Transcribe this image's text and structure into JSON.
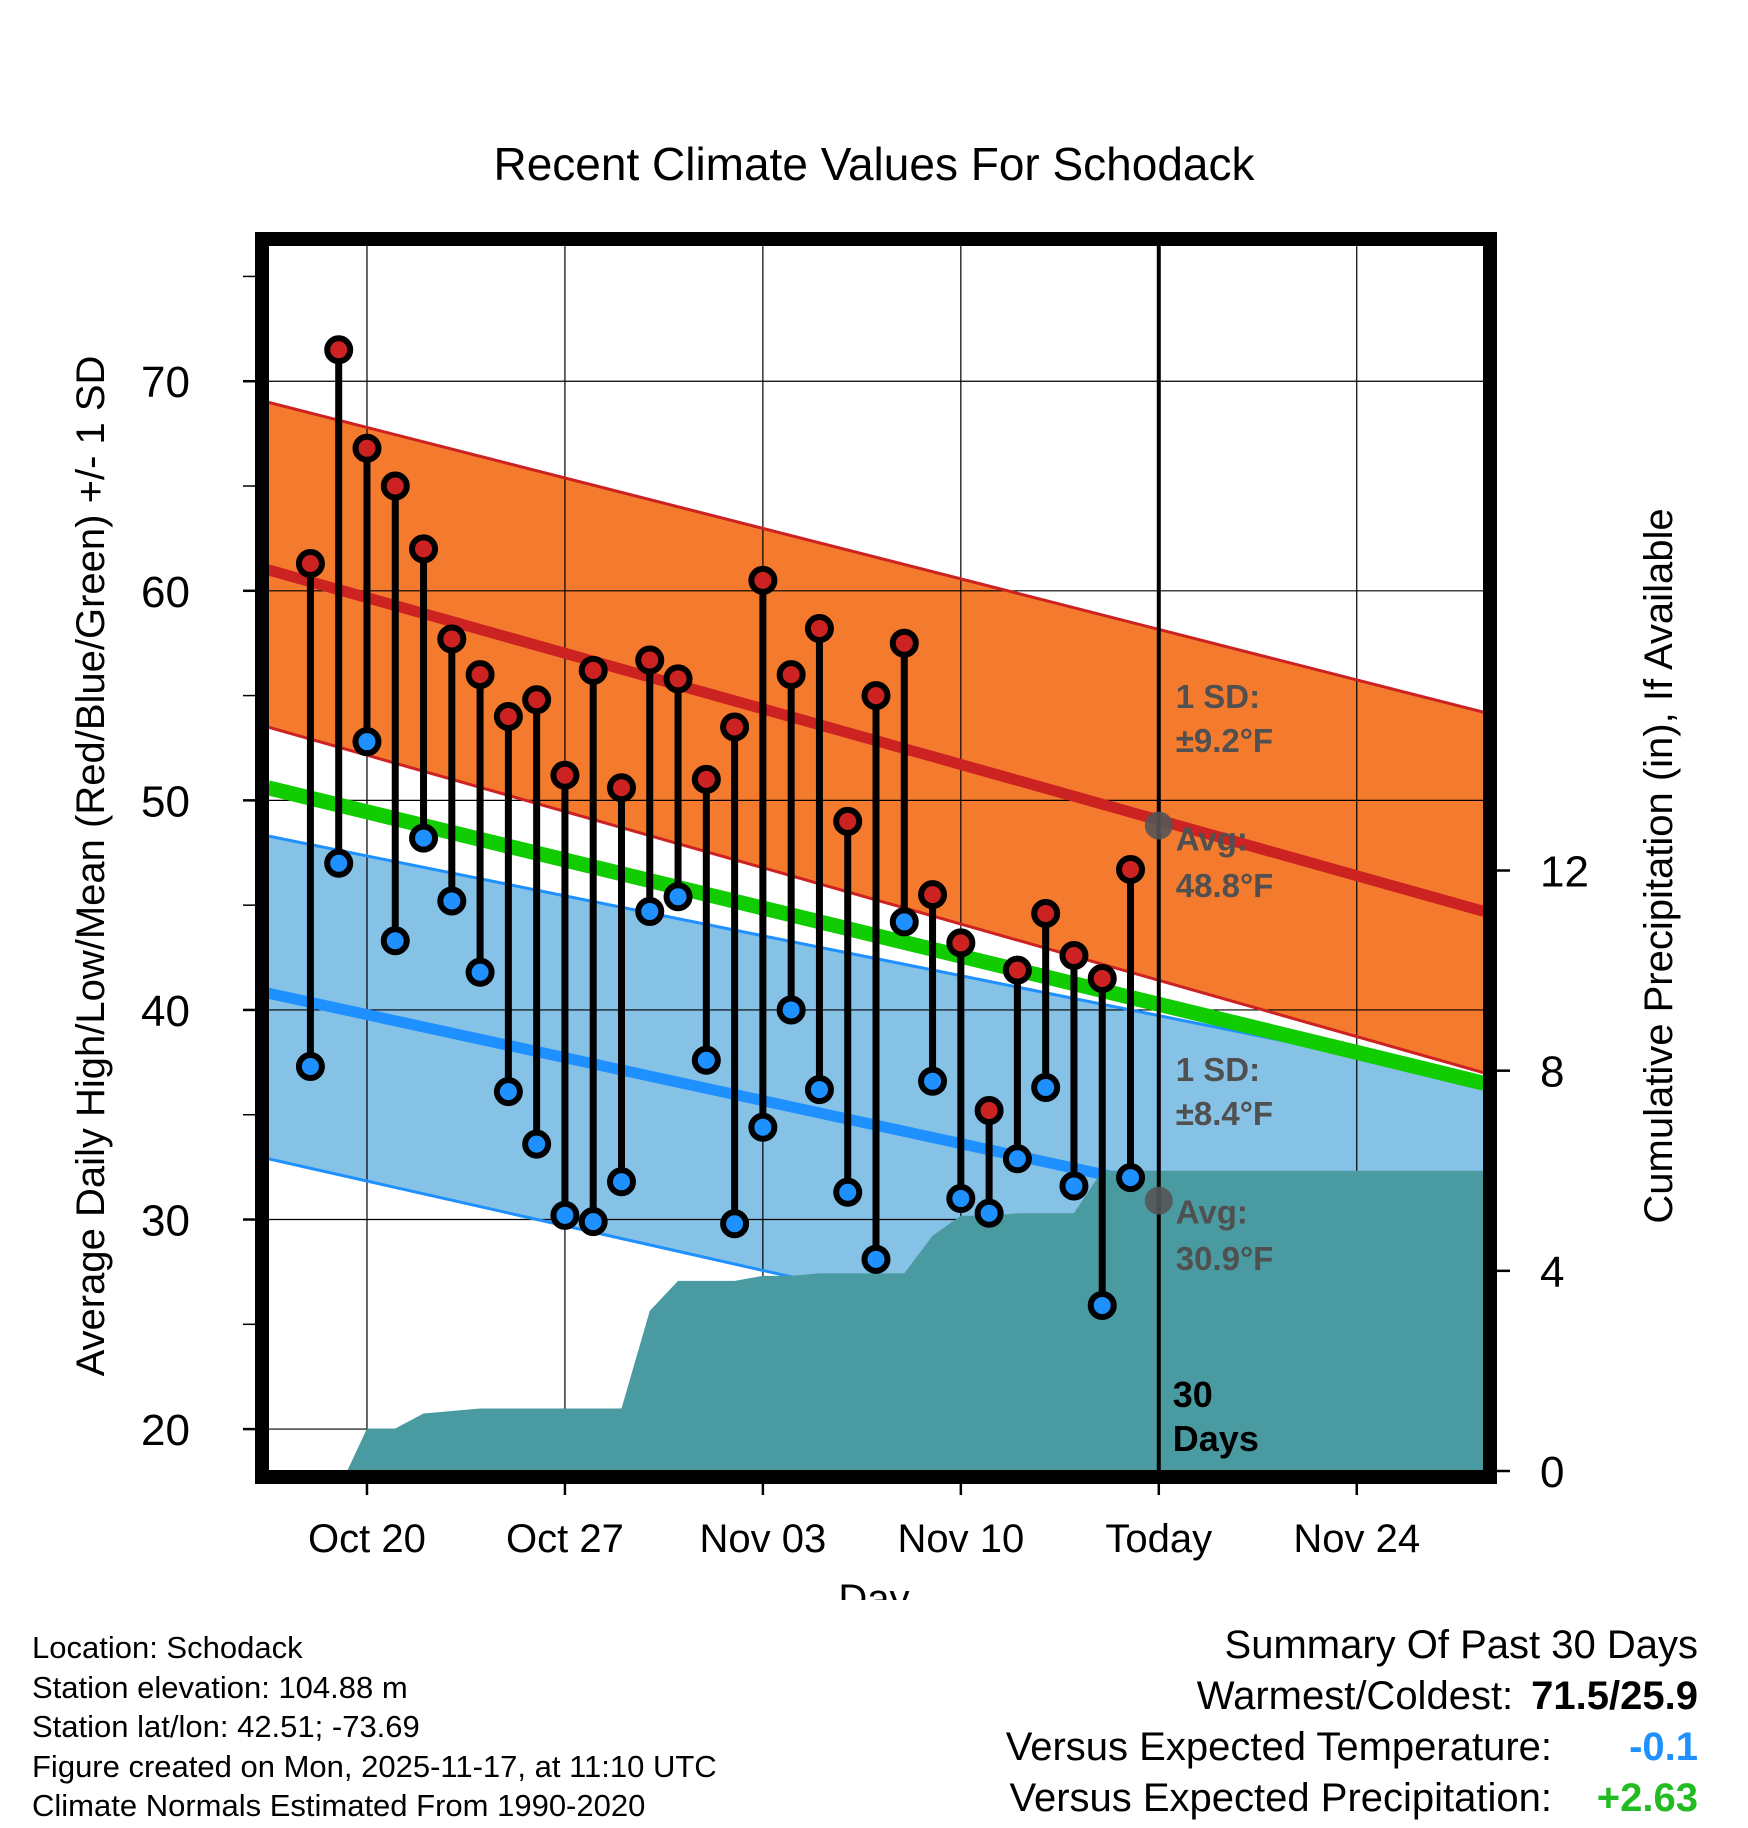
{
  "chart_data": {
    "type": "line",
    "title": "Recent Climate Values For Schodack",
    "xlabel": "Day",
    "ylabel": "Average Daily High/Low/Mean (Red/Blue/Green) +/- 1 SD",
    "ylabel_right": "Cumulative Precipitation (in), If Available",
    "xlim": [
      -3.5,
      39.5
    ],
    "ylim": [
      18,
      76.5
    ],
    "y2lim": [
      0,
      24.5
    ],
    "x_ticks": [
      {
        "x": 0,
        "label": "Oct 20"
      },
      {
        "x": 7,
        "label": "Oct 27"
      },
      {
        "x": 14,
        "label": "Nov 03"
      },
      {
        "x": 21,
        "label": "Nov 10"
      },
      {
        "x": 28,
        "label": "Today"
      },
      {
        "x": 35,
        "label": "Nov 24"
      }
    ],
    "y_ticks": [
      20,
      30,
      40,
      50,
      60,
      70
    ],
    "y2_ticks": [
      0,
      4,
      8,
      12
    ],
    "today_x": 28,
    "days_label": "30\nDays",
    "normals": {
      "high_avg": [
        61.0,
        44.7
      ],
      "high_sd_upper": [
        69.0,
        54.2
      ],
      "high_sd_lower": [
        53.5,
        37.0
      ],
      "low_avg": [
        40.8,
        28.2
      ],
      "low_sd_upper": [
        48.3,
        36.6
      ],
      "low_sd_lower": [
        32.9,
        19.8
      ],
      "mean_avg": [
        50.6,
        36.5
      ]
    },
    "series": [
      {
        "name": "Daily High",
        "color": "#cc2222",
        "x": [
          -2,
          -1,
          0,
          1,
          2,
          3,
          4,
          5,
          6,
          7,
          8,
          9,
          10,
          11,
          12,
          13,
          14,
          15,
          16,
          17,
          18,
          19,
          20,
          21,
          22,
          23,
          24,
          25,
          26,
          27
        ],
        "values": [
          61.3,
          71.5,
          66.8,
          65.0,
          62.0,
          57.7,
          56.0,
          54.0,
          54.8,
          51.2,
          56.2,
          50.6,
          56.7,
          55.8,
          51.0,
          53.5,
          60.5,
          56.0,
          58.2,
          49.0,
          55.0,
          57.5,
          45.5,
          43.2,
          35.2,
          41.9,
          44.6,
          42.6,
          41.5,
          46.7
        ]
      },
      {
        "name": "Daily Low",
        "color": "#1e90ff",
        "x": [
          -2,
          -1,
          0,
          1,
          2,
          3,
          4,
          5,
          6,
          7,
          8,
          9,
          10,
          11,
          12,
          13,
          14,
          15,
          16,
          17,
          18,
          19,
          20,
          21,
          22,
          23,
          24,
          25,
          26,
          27
        ],
        "values": [
          37.3,
          47.0,
          52.8,
          43.3,
          48.2,
          45.2,
          41.8,
          36.1,
          33.6,
          30.2,
          29.9,
          31.8,
          44.7,
          45.4,
          37.6,
          29.8,
          34.4,
          40.0,
          36.2,
          31.3,
          28.1,
          44.2,
          36.6,
          31.0,
          30.3,
          32.9,
          36.3,
          31.6,
          25.9,
          32.0
        ]
      },
      {
        "name": "Cumulative Precipitation",
        "color": "#4a9aa2",
        "x": [
          -3.5,
          -0.7,
          0,
          1,
          2,
          3,
          4,
          5,
          6,
          7,
          8,
          9,
          10,
          11,
          12,
          13,
          14,
          15,
          16,
          17,
          18,
          19,
          20,
          21,
          22,
          23,
          24,
          25,
          26,
          27,
          28,
          39.5
        ],
        "values": [
          0,
          0,
          0.85,
          0.85,
          1.15,
          1.2,
          1.25,
          1.25,
          1.25,
          1.25,
          1.25,
          1.25,
          3.2,
          3.8,
          3.8,
          3.8,
          3.9,
          3.9,
          3.95,
          3.95,
          3.95,
          3.95,
          4.7,
          5.1,
          5.1,
          5.15,
          5.15,
          5.15,
          6.0,
          6.0,
          6.0,
          6.0
        ]
      }
    ],
    "annotations": [
      {
        "id": "high_sd",
        "x": 28.6,
        "y": 54.4,
        "text": "1 SD:"
      },
      {
        "id": "high_sd_val",
        "x": 28.6,
        "y": 52.3,
        "text": "±9.2°F"
      },
      {
        "id": "high_avg",
        "x": 28.6,
        "y": 47.6,
        "text": "Avg:"
      },
      {
        "id": "high_avg_val",
        "x": 28.6,
        "y": 45.4,
        "text": "48.8°F"
      },
      {
        "id": "low_sd",
        "x": 28.6,
        "y": 36.6,
        "text": "1 SD:"
      },
      {
        "id": "low_sd_val",
        "x": 28.6,
        "y": 34.5,
        "text": "±8.4°F"
      },
      {
        "id": "low_avg",
        "x": 28.6,
        "y": 29.8,
        "text": "Avg:"
      },
      {
        "id": "low_avg_val",
        "x": 28.6,
        "y": 27.6,
        "text": "30.9°F"
      }
    ],
    "today_markers": [
      {
        "x": 28,
        "y": 48.8
      },
      {
        "x": 28,
        "y": 30.9
      }
    ]
  },
  "info": {
    "location": "Location: Schodack",
    "elevation": "Station elevation: 104.88 m",
    "latlon": "Station lat/lon: 42.51; -73.69",
    "created": "Figure created on Mon, 2025-11-17, at 11:10 UTC",
    "normals": "Climate Normals Estimated From 1990-2020"
  },
  "summary": {
    "title": "Summary Of Past 30 Days",
    "warmest_label": "Warmest/Coldest:",
    "warmest_value": "71.5/25.9",
    "temp_label": "Versus Expected Temperature:",
    "temp_value": "-0.1",
    "temp_color": "#1e90ff",
    "precip_label": "Versus Expected Precipitation:",
    "precip_value": "+2.63",
    "precip_color": "#22bb22"
  }
}
